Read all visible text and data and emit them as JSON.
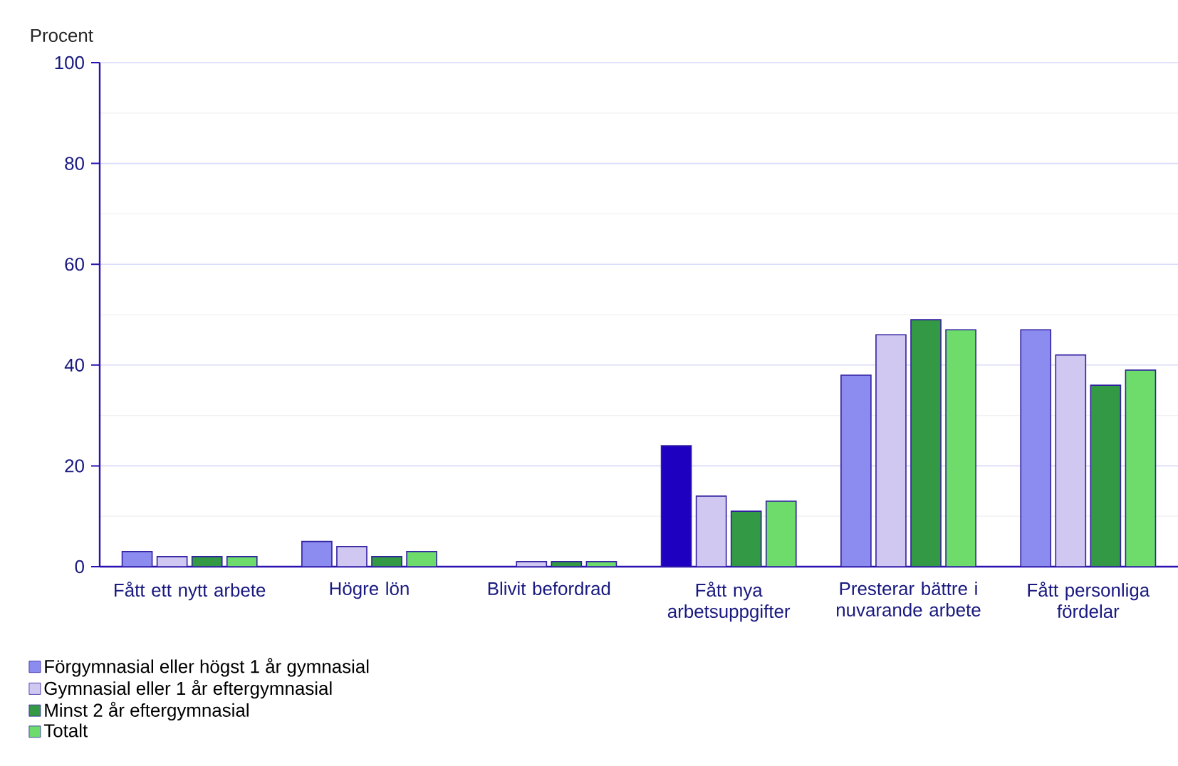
{
  "chart_data": {
    "type": "bar",
    "ylabel": "Procent",
    "categories": [
      "Fått ett nytt arbete",
      "Högre lön",
      "Blivit befordrad",
      "Fått nya arbetsuppgifter",
      "Presterar bättre i nuvarande arbete",
      "Fått personliga fördelar"
    ],
    "series": [
      {
        "name": "Förgymnasial eller högst 1 år gymnasial",
        "color": "#8c8cf0",
        "colors": [
          "#8c8cf0",
          "#8c8cf0",
          "#8c8cf0",
          "#1e00c0",
          "#8c8cf0",
          "#8c8cf0"
        ],
        "values": [
          3,
          5,
          null,
          24,
          38,
          47
        ]
      },
      {
        "name": "Gymnasial eller 1 år eftergymnasial",
        "color": "#d0c8f0",
        "values": [
          2,
          4,
          1,
          14,
          46,
          42
        ]
      },
      {
        "name": "Minst 2 år eftergymnasial",
        "color": "#339944",
        "values": [
          2,
          2,
          1,
          11,
          49,
          36
        ]
      },
      {
        "name": "Totalt",
        "color": "#6ddc6a",
        "values": [
          2,
          3,
          1,
          13,
          47,
          39
        ]
      }
    ],
    "ylim": [
      0,
      100
    ],
    "yticks": [
      0,
      20,
      40,
      60,
      80,
      100
    ],
    "grid": "y",
    "legend": "bottom"
  }
}
